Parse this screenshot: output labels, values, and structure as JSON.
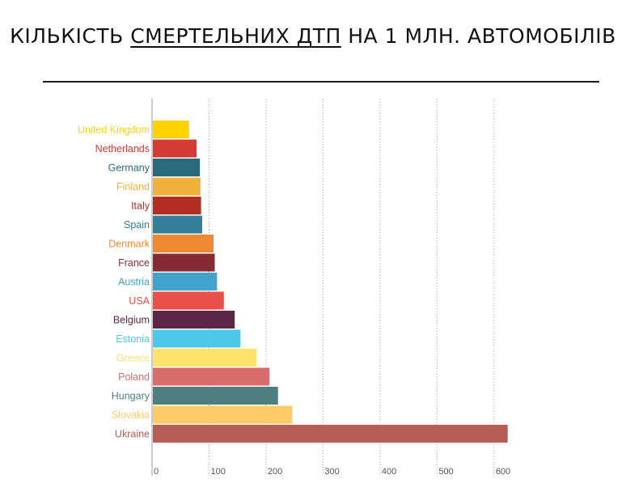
{
  "title": {
    "part1": "КІЛЬКІСТЬ ",
    "emphasis": "СМЕРТЕЛЬНИХ ДТП",
    "part2": " НА 1 МЛН. АВТОМОБІЛІВ"
  },
  "chart_data": {
    "type": "bar",
    "orientation": "horizontal",
    "xlim": [
      0,
      640
    ],
    "ticks": [
      0,
      100,
      200,
      300,
      400,
      500,
      600
    ],
    "grid": "vertical-dotted",
    "categories": [
      "United Kingdom",
      "Netherlands",
      "Germany",
      "Finland",
      "Italy",
      "Spain",
      "Denmark",
      "France",
      "Austria",
      "USA",
      "Belgium",
      "Estonia",
      "Greece",
      "Poland",
      "Hungary",
      "Slovakia",
      "Ukraine"
    ],
    "values": [
      65,
      78,
      84,
      85,
      86,
      88,
      108,
      110,
      114,
      126,
      145,
      155,
      183,
      206,
      221,
      246,
      624
    ],
    "colors": [
      "#ffd200",
      "#d23a33",
      "#2a6a7c",
      "#f0b23b",
      "#b22d22",
      "#337f9a",
      "#ef8a32",
      "#862b34",
      "#40a3cc",
      "#e95049",
      "#5c2649",
      "#4ec8ea",
      "#ffe26c",
      "#d96c6c",
      "#4c7e82",
      "#ffcb69",
      "#b65e55"
    ]
  }
}
